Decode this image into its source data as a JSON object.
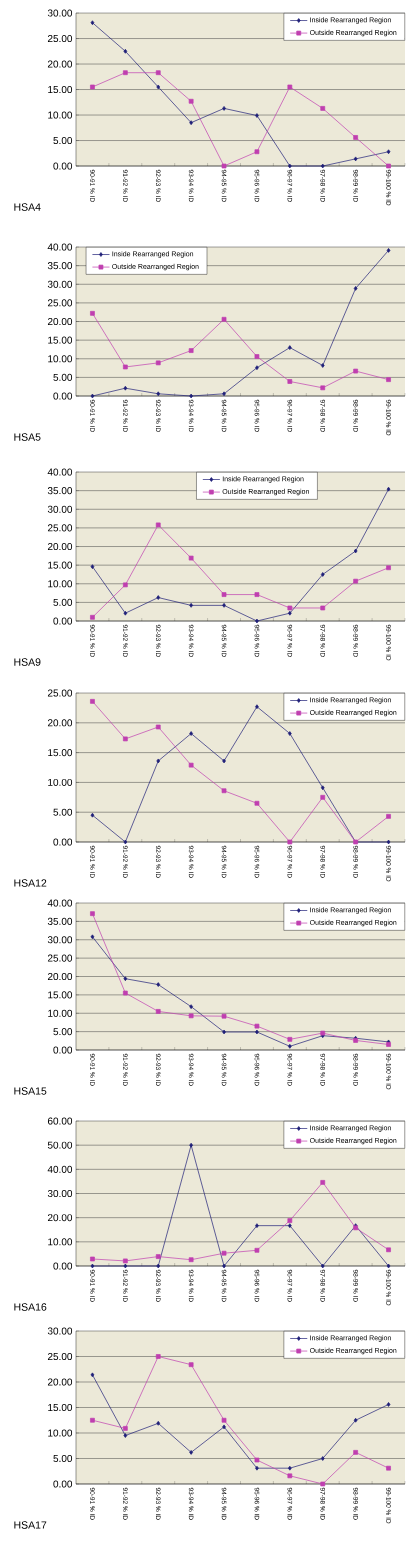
{
  "chart_data": [
    {
      "type": "line",
      "title": "HSA4",
      "categories": [
        "90-91 % ID",
        "91-92 % ID",
        "92-93 % ID",
        "93-94 % ID",
        "94-95 % ID",
        "95-96 % ID",
        "96-97 % ID",
        "97-98 % ID",
        "98-99 % ID",
        "99-100 % ID"
      ],
      "ylim": [
        0,
        30
      ],
      "yticks": [
        {
          "value": 0,
          "label": "0.00"
        },
        {
          "value": 5,
          "label": "5.00"
        },
        {
          "value": 10,
          "label": "10.00"
        },
        {
          "value": 15,
          "label": "15.00"
        },
        {
          "value": 20,
          "label": "20.00"
        },
        {
          "value": 25,
          "label": "25.00"
        },
        {
          "value": 30,
          "label": "30.00"
        }
      ],
      "grid": "y",
      "legend": "top right",
      "series": [
        {
          "name": "Inside Rearranged Region",
          "color": "#1f1f78",
          "marker": "diamond",
          "values": [
            28.1,
            22.5,
            15.5,
            8.5,
            11.3,
            9.9,
            0,
            0,
            1.4,
            2.8
          ]
        },
        {
          "name": "Outside Rearranged Region",
          "color": "#c03fb0",
          "marker": "square",
          "values": [
            15.5,
            18.3,
            18.3,
            12.7,
            0,
            2.8,
            15.5,
            11.3,
            5.6,
            0
          ]
        }
      ]
    },
    {
      "type": "line",
      "title": "HSA5",
      "categories": [
        "90-91 % ID",
        "91-92 % ID",
        "92-93 % ID",
        "93-94 % ID",
        "94-95 % ID",
        "95-96 % ID",
        "96-97 % ID",
        "97-98 % ID",
        "98-99 % ID",
        "99-100 % ID"
      ],
      "ylim": [
        0,
        40
      ],
      "yticks": [
        {
          "value": 0,
          "label": "0.00"
        },
        {
          "value": 5,
          "label": "5.00"
        },
        {
          "value": 10,
          "label": "10.00"
        },
        {
          "value": 15,
          "label": "15.00"
        },
        {
          "value": 20,
          "label": "20.00"
        },
        {
          "value": 25,
          "label": "25.00"
        },
        {
          "value": 30,
          "label": "30.00"
        },
        {
          "value": 35,
          "label": "35.00"
        },
        {
          "value": 40,
          "label": "40.00"
        }
      ],
      "grid": "y",
      "legend": "top left",
      "series": [
        {
          "name": "Inside Rearranged Region",
          "color": "#1f1f78",
          "marker": "diamond",
          "values": [
            0,
            2.1,
            0.6,
            0,
            0.6,
            7.6,
            13.0,
            8.2,
            28.9,
            39.1
          ]
        },
        {
          "name": "Outside Rearranged Region",
          "color": "#c03fb0",
          "marker": "square",
          "values": [
            22.2,
            7.8,
            8.9,
            12.2,
            20.6,
            10.6,
            3.9,
            2.2,
            6.7,
            4.4
          ]
        }
      ]
    },
    {
      "type": "line",
      "title": "HSA9",
      "categories": [
        "90-91 % ID",
        "91-92 % ID",
        "92-93 % ID",
        "93-94 % ID",
        "94-95 % ID",
        "95-96 % ID",
        "96-97 % ID",
        "97-98 % ID",
        "98-99 % ID",
        "99-100 % ID"
      ],
      "ylim": [
        0,
        40
      ],
      "yticks": [
        {
          "value": 0,
          "label": "0.00"
        },
        {
          "value": 5,
          "label": "5.00"
        },
        {
          "value": 10,
          "label": "10.00"
        },
        {
          "value": 15,
          "label": "15.00"
        },
        {
          "value": 20,
          "label": "20.00"
        },
        {
          "value": 25,
          "label": "25.00"
        },
        {
          "value": 30,
          "label": "30.00"
        },
        {
          "value": 35,
          "label": "35.00"
        },
        {
          "value": 40,
          "label": "40.00"
        }
      ],
      "grid": "y",
      "legend": "top",
      "series": [
        {
          "name": "Inside Rearranged Region",
          "color": "#1f1f78",
          "marker": "diamond",
          "values": [
            14.6,
            2.1,
            6.3,
            4.2,
            4.2,
            0,
            2.1,
            12.5,
            18.8,
            35.4
          ]
        },
        {
          "name": "Outside Rearranged Region",
          "color": "#c03fb0",
          "marker": "square",
          "values": [
            1.0,
            9.7,
            25.8,
            16.9,
            7.1,
            7.1,
            3.5,
            3.5,
            10.7,
            14.3
          ]
        }
      ]
    },
    {
      "type": "line",
      "title": "HSA12",
      "categories": [
        "90-91 % ID",
        "91-92 % ID",
        "92-93 % ID",
        "93-94 % ID",
        "94-95 % ID",
        "95-96 % ID",
        "96-97 % ID",
        "97-98 % ID",
        "98-99 % ID",
        "99-100 % ID"
      ],
      "ylim": [
        0,
        25
      ],
      "yticks": [
        {
          "value": 0,
          "label": "0.00"
        },
        {
          "value": 5,
          "label": "5.00"
        },
        {
          "value": 10,
          "label": "10.00"
        },
        {
          "value": 15,
          "label": "15.00"
        },
        {
          "value": 20,
          "label": "20.00"
        },
        {
          "value": 25,
          "label": "25.00"
        }
      ],
      "grid": "y",
      "legend": "top right",
      "series": [
        {
          "name": "Inside Rearranged Region",
          "color": "#1f1f78",
          "marker": "diamond",
          "values": [
            4.5,
            0,
            13.6,
            18.2,
            13.6,
            22.7,
            18.2,
            9.1,
            0,
            0
          ]
        },
        {
          "name": "Outside Rearranged Region",
          "color": "#c03fb0",
          "marker": "square",
          "values": [
            23.6,
            17.3,
            19.3,
            12.9,
            8.6,
            6.5,
            0,
            7.5,
            0,
            4.3
          ]
        }
      ]
    },
    {
      "type": "line",
      "title": "HSA15",
      "categories": [
        "90-91 % ID",
        "91-92 % ID",
        "92-93 % ID",
        "93-94 % ID",
        "94-95 % ID",
        "95-96 % ID",
        "96-97 % ID",
        "97-98 % ID",
        "98-99 % ID",
        "99-100 % ID"
      ],
      "ylim": [
        0,
        40
      ],
      "yticks": [
        {
          "value": 0,
          "label": "0.00"
        },
        {
          "value": 5,
          "label": "5.00"
        },
        {
          "value": 10,
          "label": "10.00"
        },
        {
          "value": 15,
          "label": "15.00"
        },
        {
          "value": 20,
          "label": "20.00"
        },
        {
          "value": 25,
          "label": "25.00"
        },
        {
          "value": 30,
          "label": "30.00"
        },
        {
          "value": 35,
          "label": "35.00"
        },
        {
          "value": 40,
          "label": "40.00"
        }
      ],
      "grid": "y",
      "legend": "top right",
      "series": [
        {
          "name": "Inside Rearranged Region",
          "color": "#1f1f78",
          "marker": "diamond",
          "values": [
            30.8,
            19.4,
            17.8,
            11.8,
            4.9,
            4.9,
            1.0,
            3.9,
            3.2,
            2.2
          ]
        },
        {
          "name": "Outside Rearranged Region",
          "color": "#c03fb0",
          "marker": "square",
          "values": [
            37.1,
            15.5,
            10.5,
            9.3,
            9.2,
            6.5,
            2.9,
            4.6,
            2.6,
            1.5
          ]
        }
      ]
    },
    {
      "type": "line",
      "title": "HSA16",
      "categories": [
        "90-91 % ID",
        "91-92 % ID",
        "92-93 % ID",
        "93-94 % ID",
        "94-95 % ID",
        "95-96 % ID",
        "96-97 % ID",
        "97-98 % ID",
        "98-99 % ID",
        "99-100 % ID"
      ],
      "ylim": [
        0,
        60
      ],
      "yticks": [
        {
          "value": 0,
          "label": "0.00"
        },
        {
          "value": 10,
          "label": "10.00"
        },
        {
          "value": 20,
          "label": "20.00"
        },
        {
          "value": 30,
          "label": "30.00"
        },
        {
          "value": 40,
          "label": "40.00"
        },
        {
          "value": 50,
          "label": "50.00"
        },
        {
          "value": 60,
          "label": "60.00"
        }
      ],
      "grid": "y",
      "legend": "top right",
      "series": [
        {
          "name": "Inside Rearranged Region",
          "color": "#1f1f78",
          "marker": "diamond",
          "values": [
            0,
            0,
            0,
            50.0,
            0,
            16.7,
            16.7,
            0,
            16.7,
            0
          ]
        },
        {
          "name": "Outside Rearranged Region",
          "color": "#c03fb0",
          "marker": "square",
          "values": [
            2.9,
            2.1,
            3.9,
            2.6,
            5.3,
            6.5,
            18.8,
            34.6,
            15.8,
            6.7
          ]
        }
      ]
    },
    {
      "type": "line",
      "title": "HSA17",
      "categories": [
        "90-91 % ID",
        "91-92 % ID",
        "92-93 % ID",
        "93-94 % ID",
        "94-95 % ID",
        "95-96 % ID",
        "96-97 % ID",
        "97-98 % ID",
        "98-99 % ID",
        "99-100 % ID"
      ],
      "ylim": [
        0,
        30
      ],
      "yticks": [
        {
          "value": 0,
          "label": "0.00"
        },
        {
          "value": 5,
          "label": "5.00"
        },
        {
          "value": 10,
          "label": "10.00"
        },
        {
          "value": 15,
          "label": "15.00"
        },
        {
          "value": 20,
          "label": "20.00"
        },
        {
          "value": 25,
          "label": "25.00"
        },
        {
          "value": 30,
          "label": "30.00"
        }
      ],
      "grid": "y",
      "legend": "top right",
      "series": [
        {
          "name": "Inside Rearranged Region",
          "color": "#1f1f78",
          "marker": "diamond",
          "values": [
            21.4,
            9.5,
            11.9,
            6.2,
            11.2,
            3.1,
            3.1,
            5.0,
            12.5,
            15.6
          ]
        },
        {
          "name": "Outside Rearranged Region",
          "color": "#c03fb0",
          "marker": "square",
          "values": [
            12.5,
            10.9,
            25.0,
            23.4,
            12.5,
            4.7,
            1.6,
            0,
            6.2,
            3.1
          ]
        }
      ]
    }
  ]
}
